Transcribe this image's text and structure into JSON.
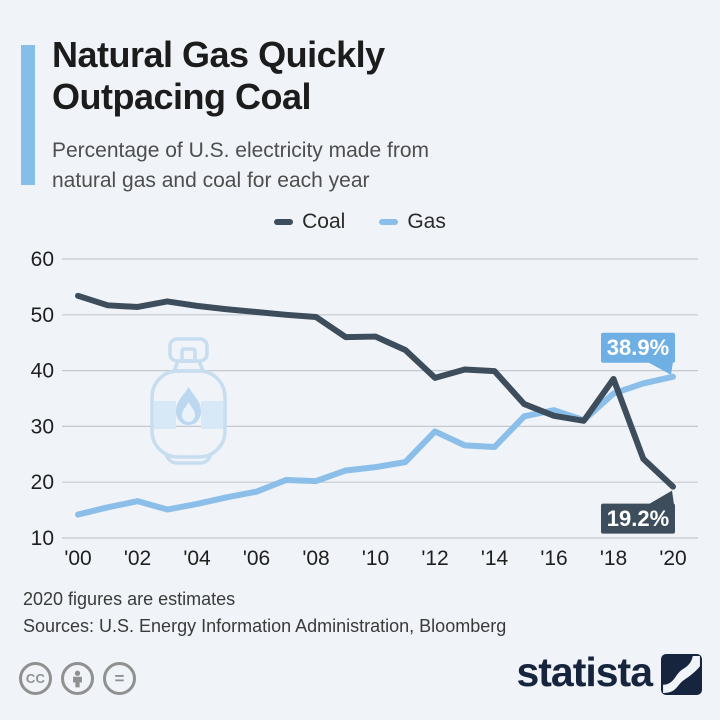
{
  "header": {
    "title": "Natural Gas Quickly\nOutpacing Coal",
    "subtitle": "Percentage of U.S. electricity made from\nnatural gas and coal for each year"
  },
  "chart_data": {
    "type": "line",
    "x": [
      2000,
      2001,
      2002,
      2003,
      2004,
      2005,
      2006,
      2007,
      2008,
      2009,
      2010,
      2011,
      2012,
      2013,
      2014,
      2015,
      2016,
      2017,
      2018,
      2019,
      2020
    ],
    "x_tick_labels": [
      "'00",
      "'02",
      "'04",
      "'06",
      "'08",
      "'10",
      "'12",
      "'14",
      "'16",
      "'18",
      "'20"
    ],
    "yticks": [
      60,
      50,
      40,
      30,
      20,
      10
    ],
    "ylim": [
      10,
      60
    ],
    "grid": true,
    "legend_position": "top-center",
    "series": [
      {
        "name": "Coal",
        "color": "#3d4d5b",
        "values": [
          53.4,
          51.7,
          51.4,
          52.4,
          51.6,
          51.0,
          50.5,
          50.0,
          49.6,
          46.0,
          46.1,
          43.7,
          38.7,
          40.2,
          39.9,
          34.0,
          31.9,
          31.0,
          38.5,
          24.2,
          19.2
        ],
        "end_label": "19.2%",
        "end_label_bg": "#3d4d5b",
        "end_label_color": "#ffffff",
        "end_label_side": "below"
      },
      {
        "name": "Gas",
        "color": "#8bbfe9",
        "values": [
          14.2,
          15.5,
          16.6,
          15.1,
          16.1,
          17.3,
          18.3,
          20.4,
          20.2,
          22.1,
          22.7,
          23.6,
          29.1,
          26.6,
          26.3,
          31.8,
          32.9,
          31.1,
          35.9,
          37.7,
          38.9
        ],
        "end_label": "38.9%",
        "end_label_bg": "#6fb0e4",
        "end_label_color": "#ffffff",
        "end_label_side": "above"
      }
    ]
  },
  "footer": {
    "note": "2020 figures are estimates",
    "sources": "Sources: U.S. Energy Information Administration, Bloomberg",
    "cc_label": "CC",
    "nd_label": "=",
    "brand": "statista"
  },
  "colors": {
    "background": "#f0f3f7",
    "accent_bar": "#85bfe8",
    "grid": "#c4c9cf",
    "tick_text": "#1f1f1f",
    "coal": "#3d4d5b",
    "gas": "#8bbfe9",
    "brand_navy": "#16243d",
    "license_gray": "#909090",
    "watermark_stroke": "#c7ddf0",
    "watermark_fill": "#d7e8f7"
  }
}
